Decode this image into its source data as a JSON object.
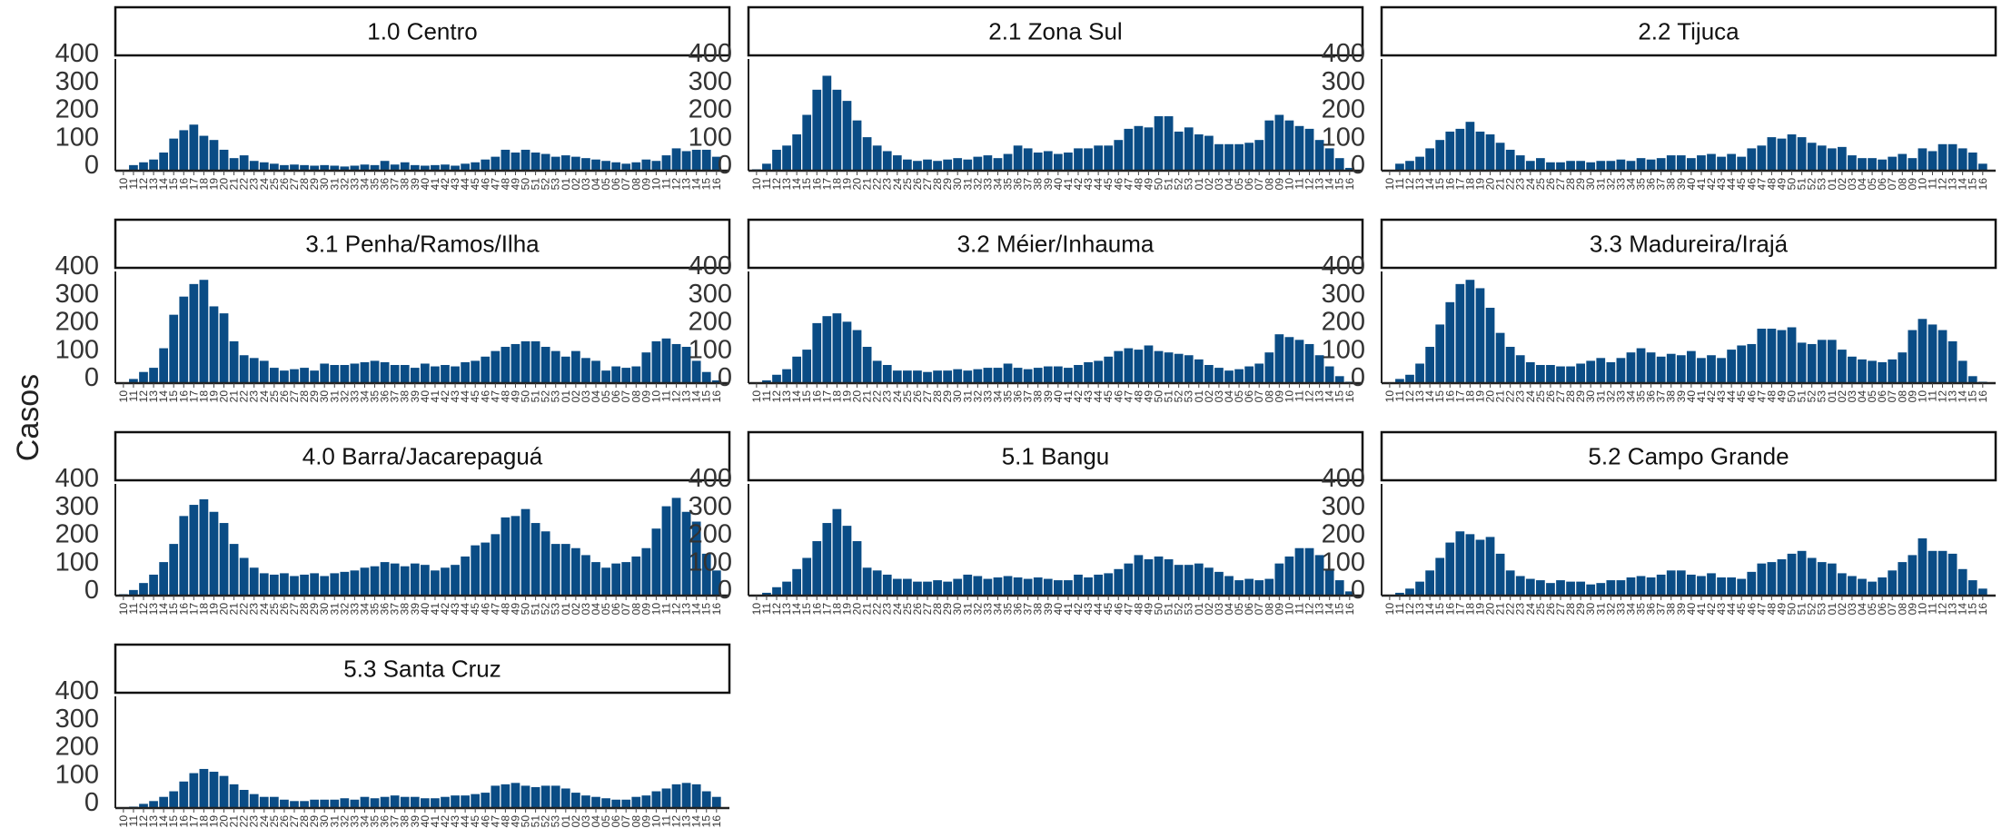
{
  "chart_data": {
    "type": "bar",
    "ylabel": "Casos",
    "xlabel": "",
    "ylim": [
      0,
      400
    ],
    "yticks": [
      0,
      100,
      200,
      300,
      400
    ],
    "bar_color": "#0a4c85",
    "x_labels": [
      "10",
      "11",
      "12",
      "13",
      "14",
      "15",
      "16",
      "17",
      "18",
      "19",
      "20",
      "21",
      "22",
      "23",
      "24",
      "25",
      "26",
      "27",
      "28",
      "29",
      "30",
      "31",
      "32",
      "33",
      "34",
      "35",
      "36",
      "37",
      "38",
      "39",
      "40",
      "41",
      "42",
      "43",
      "44",
      "45",
      "46",
      "47",
      "48",
      "49",
      "50",
      "51",
      "52",
      "53",
      "01",
      "02",
      "03",
      "04",
      "05",
      "06",
      "07",
      "08",
      "09",
      "10",
      "11",
      "12",
      "13",
      "14",
      "15",
      "16"
    ],
    "panels": [
      {
        "label": "1.0 Centro",
        "values": [
          3,
          20,
          30,
          40,
          65,
          115,
          145,
          165,
          125,
          110,
          75,
          45,
          55,
          35,
          30,
          25,
          20,
          22,
          20,
          18,
          20,
          18,
          15,
          18,
          22,
          20,
          35,
          22,
          30,
          20,
          18,
          20,
          22,
          18,
          25,
          30,
          40,
          50,
          75,
          65,
          75,
          65,
          60,
          50,
          55,
          50,
          45,
          40,
          35,
          30,
          25,
          30,
          40,
          35,
          55,
          80,
          70,
          75,
          75,
          50
        ]
      },
      {
        "label": "2.1 Zona Sul",
        "values": [
          5,
          25,
          75,
          90,
          130,
          200,
          290,
          340,
          290,
          250,
          180,
          120,
          90,
          70,
          55,
          40,
          35,
          40,
          35,
          40,
          45,
          40,
          50,
          55,
          45,
          60,
          90,
          80,
          65,
          70,
          60,
          65,
          80,
          80,
          90,
          90,
          110,
          150,
          160,
          155,
          195,
          195,
          140,
          155,
          130,
          125,
          95,
          95,
          95,
          100,
          110,
          180,
          200,
          180,
          160,
          150,
          110,
          80,
          45,
          10
        ]
      },
      {
        "label": "2.2 Tijuca",
        "values": [
          2,
          25,
          35,
          50,
          80,
          110,
          140,
          150,
          175,
          140,
          130,
          100,
          75,
          55,
          35,
          45,
          30,
          30,
          35,
          35,
          30,
          35,
          35,
          40,
          35,
          45,
          40,
          45,
          55,
          55,
          45,
          55,
          60,
          50,
          60,
          50,
          80,
          90,
          120,
          115,
          130,
          120,
          100,
          90,
          80,
          85,
          55,
          45,
          45,
          40,
          50,
          60,
          45,
          80,
          70,
          95,
          95,
          80,
          65,
          25
        ]
      },
      {
        "label": "3.1 Penha/Ramos/Ilha",
        "values": [
          3,
          15,
          40,
          55,
          125,
          245,
          310,
          355,
          370,
          275,
          250,
          150,
          100,
          90,
          80,
          55,
          45,
          50,
          55,
          45,
          70,
          65,
          65,
          70,
          75,
          80,
          75,
          65,
          65,
          55,
          70,
          60,
          65,
          60,
          75,
          80,
          95,
          115,
          130,
          140,
          150,
          150,
          130,
          115,
          95,
          115,
          90,
          80,
          45,
          60,
          55,
          60,
          110,
          150,
          160,
          140,
          130,
          80,
          40,
          10
        ]
      },
      {
        "label": "3.2 Méier/Inhauma",
        "values": [
          3,
          10,
          30,
          50,
          95,
          120,
          215,
          240,
          250,
          220,
          190,
          130,
          80,
          65,
          45,
          45,
          45,
          40,
          45,
          45,
          50,
          45,
          50,
          55,
          55,
          70,
          55,
          50,
          55,
          60,
          60,
          55,
          65,
          75,
          80,
          95,
          115,
          125,
          120,
          135,
          115,
          110,
          105,
          100,
          85,
          65,
          55,
          45,
          50,
          60,
          70,
          110,
          175,
          165,
          155,
          140,
          100,
          60,
          25,
          5
        ]
      },
      {
        "label": "3.3 Madureira/Irajá",
        "values": [
          3,
          15,
          30,
          70,
          130,
          210,
          290,
          355,
          370,
          340,
          270,
          180,
          130,
          100,
          75,
          65,
          65,
          60,
          60,
          70,
          80,
          90,
          75,
          90,
          110,
          125,
          110,
          95,
          105,
          100,
          115,
          90,
          100,
          90,
          120,
          135,
          140,
          195,
          195,
          190,
          200,
          145,
          140,
          155,
          155,
          120,
          95,
          85,
          80,
          75,
          85,
          110,
          190,
          230,
          210,
          190,
          150,
          80,
          25,
          5
        ]
      },
      {
        "label": "4.0 Barra/Jacarepaguá",
        "values": [
          5,
          20,
          45,
          75,
          120,
          185,
          285,
          325,
          345,
          300,
          260,
          185,
          135,
          100,
          80,
          75,
          80,
          70,
          75,
          80,
          70,
          80,
          85,
          90,
          100,
          105,
          120,
          115,
          105,
          115,
          110,
          90,
          100,
          110,
          140,
          180,
          190,
          220,
          280,
          285,
          310,
          260,
          230,
          185,
          185,
          170,
          145,
          120,
          100,
          115,
          120,
          140,
          170,
          240,
          320,
          350,
          300,
          265,
          150,
          90
        ]
      },
      {
        "label": "5.1 Bangu",
        "values": [
          2,
          10,
          30,
          50,
          95,
          135,
          195,
          260,
          310,
          250,
          195,
          100,
          90,
          75,
          60,
          60,
          50,
          50,
          55,
          50,
          60,
          75,
          70,
          60,
          65,
          70,
          65,
          60,
          65,
          60,
          55,
          55,
          75,
          65,
          75,
          80,
          95,
          115,
          145,
          130,
          140,
          130,
          110,
          110,
          115,
          100,
          85,
          70,
          55,
          60,
          55,
          60,
          115,
          140,
          170,
          170,
          145,
          90,
          55,
          15
        ]
      },
      {
        "label": "5.2 Campo Grande",
        "values": [
          3,
          10,
          25,
          50,
          90,
          135,
          190,
          230,
          220,
          200,
          210,
          150,
          90,
          70,
          60,
          55,
          45,
          55,
          50,
          50,
          40,
          45,
          55,
          55,
          65,
          70,
          65,
          75,
          90,
          90,
          75,
          70,
          80,
          65,
          65,
          60,
          85,
          115,
          120,
          130,
          150,
          160,
          135,
          120,
          115,
          80,
          70,
          60,
          50,
          65,
          90,
          120,
          145,
          205,
          160,
          160,
          150,
          95,
          55,
          25
        ]
      },
      {
        "label": "5.3 Santa Cruz",
        "values": [
          2,
          5,
          15,
          25,
          40,
          60,
          95,
          125,
          140,
          130,
          115,
          85,
          65,
          50,
          40,
          40,
          30,
          25,
          25,
          30,
          30,
          30,
          35,
          30,
          40,
          35,
          40,
          45,
          40,
          40,
          35,
          35,
          40,
          45,
          45,
          50,
          55,
          80,
          85,
          90,
          80,
          75,
          80,
          80,
          70,
          55,
          45,
          40,
          35,
          30,
          30,
          40,
          45,
          60,
          70,
          85,
          90,
          85,
          60,
          40
        ]
      }
    ]
  }
}
